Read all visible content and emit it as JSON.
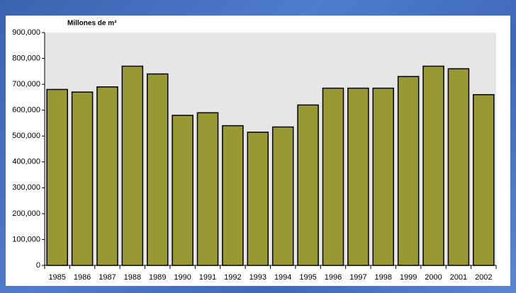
{
  "chart_data": {
    "type": "bar",
    "title": "Millones de m³",
    "categories": [
      "1985",
      "1986",
      "1987",
      "1988",
      "1989",
      "1990",
      "1991",
      "1992",
      "1993",
      "1994",
      "1995",
      "1996",
      "1997",
      "1998",
      "1999",
      "2000",
      "2001",
      "2002"
    ],
    "values": [
      680000,
      670000,
      690000,
      770000,
      740000,
      580000,
      590000,
      540000,
      515000,
      535000,
      620000,
      685000,
      685000,
      685000,
      730000,
      770000,
      760000,
      660000
    ],
    "color": "#999933",
    "ylim": [
      0,
      900000
    ],
    "yticks": [
      0,
      {
        "value": 100000,
        "label": "100,000"
      },
      {
        "value": 200000,
        "label": "200,000"
      },
      {
        "value": 300000,
        "label": "300,000"
      },
      {
        "value": 400000,
        "label": "400,000"
      },
      {
        "value": 500000,
        "label": "500,000"
      },
      {
        "value": 600000,
        "label": "600,000"
      },
      {
        "value": 700000,
        "label": "700,000"
      },
      {
        "value": 800000,
        "label": "800,000"
      },
      {
        "value": 900000,
        "label": "900,000"
      }
    ]
  }
}
